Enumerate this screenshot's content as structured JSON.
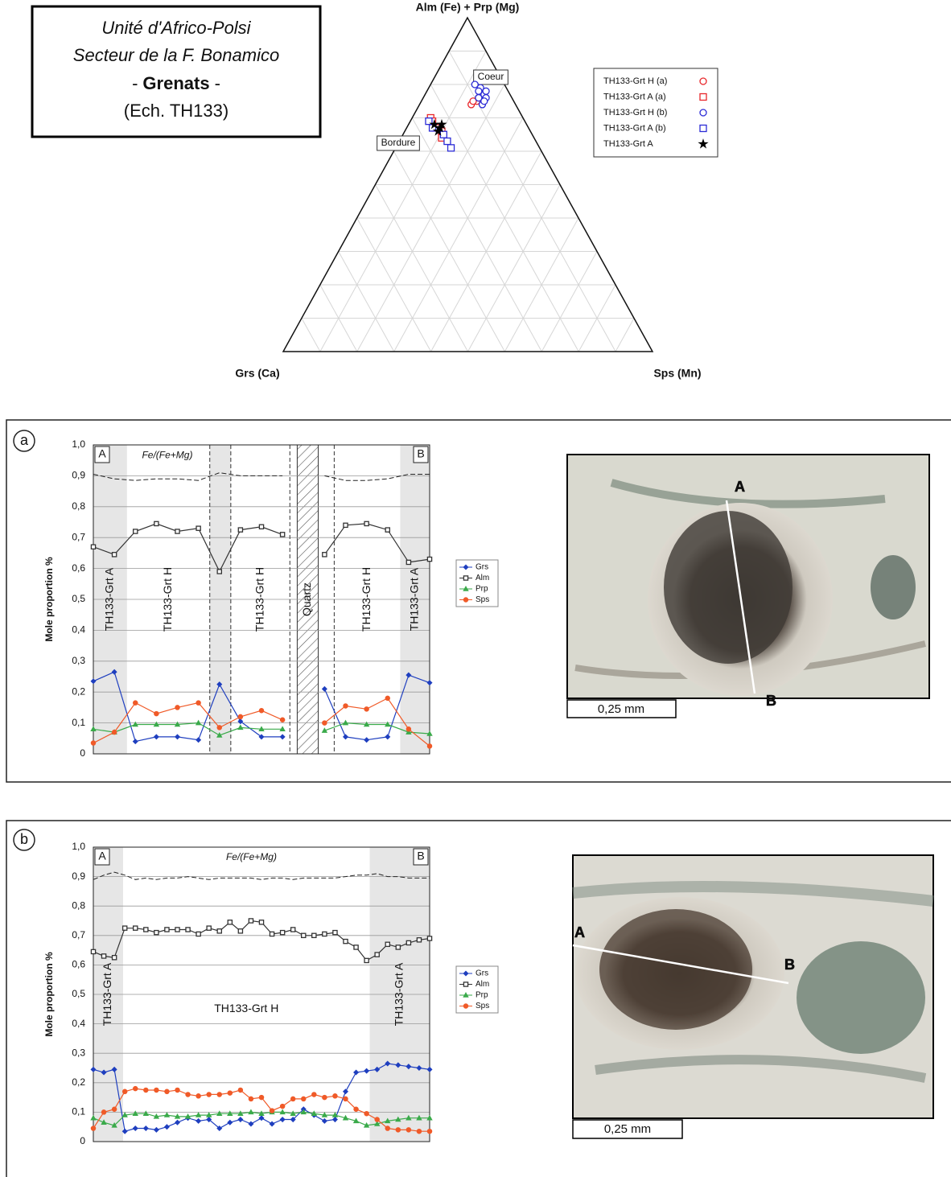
{
  "title_box": {
    "line1": "Unité d'Africo-Polsi",
    "line2": "Secteur de la F. Bonamico",
    "line3_pre": "-",
    "line3_bold": "Grenats",
    "line3_post": "-",
    "line4": "(Ech. TH133)"
  },
  "photos": [
    {
      "label_a": "A",
      "label_b": "B",
      "scale": "0,25 mm"
    },
    {
      "label_a": "A",
      "label_b": "B",
      "scale": "0,25 mm"
    }
  ],
  "chart_data": [
    {
      "type": "ternary",
      "title": "Alm (Fe) + Prp (Mg)",
      "left_label": "Grs (Ca)",
      "right_label": "Sps (Mn)",
      "ticks": [
        0.1,
        0.2,
        0.3,
        0.4,
        0.5,
        0.6,
        0.7,
        0.8,
        0.9
      ],
      "grid": true,
      "legend": "right",
      "annotations": [
        "Coeur",
        "Bordure"
      ],
      "series": [
        {
          "name": "TH133-Grt H (a)",
          "color": "#e8262a",
          "marker": "circle",
          "top": [
            0.74,
            0.75,
            0.76,
            0.77,
            0.75
          ],
          "left": [
            0.12,
            0.1,
            0.09,
            0.08,
            0.11
          ],
          "right": [
            0.14,
            0.15,
            0.15,
            0.15,
            0.14
          ]
        },
        {
          "name": "TH133-Grt A (a)",
          "color": "#e8262a",
          "marker": "square",
          "top": [
            0.7,
            0.69,
            0.67,
            0.66,
            0.64
          ],
          "left": [
            0.25,
            0.25,
            0.25,
            0.24,
            0.25
          ],
          "right": [
            0.05,
            0.06,
            0.08,
            0.1,
            0.11
          ]
        },
        {
          "name": "TH133-Grt H (b)",
          "color": "#2b2bd6",
          "marker": "circle",
          "top": [
            0.8,
            0.79,
            0.77,
            0.76,
            0.76,
            0.74,
            0.78,
            0.75,
            0.78
          ],
          "left": [
            0.08,
            0.07,
            0.07,
            0.07,
            0.09,
            0.09,
            0.08,
            0.08,
            0.06
          ],
          "right": [
            0.12,
            0.14,
            0.16,
            0.17,
            0.15,
            0.17,
            0.14,
            0.17,
            0.16
          ]
        },
        {
          "name": "TH133-Grt A (b)",
          "color": "#2b2bd6",
          "marker": "square",
          "top": [
            0.69,
            0.67,
            0.65,
            0.63,
            0.61
          ],
          "left": [
            0.26,
            0.26,
            0.24,
            0.24,
            0.24
          ],
          "right": [
            0.05,
            0.07,
            0.11,
            0.13,
            0.15
          ]
        },
        {
          "name": "TH133-Grt A",
          "color": "#000000",
          "marker": "star",
          "top": [
            0.68,
            0.68,
            0.66,
            0.67
          ],
          "left": [
            0.25,
            0.23,
            0.25,
            0.24
          ],
          "right": [
            0.07,
            0.09,
            0.09,
            0.09
          ]
        }
      ]
    },
    {
      "type": "line",
      "panel": "a",
      "ylabel": "Mole proportion %",
      "corner_labels": [
        "A",
        "B"
      ],
      "grid": true,
      "legend": "right",
      "x": [
        0,
        1,
        2,
        3,
        4,
        5,
        6,
        7,
        8,
        9,
        10,
        11,
        12,
        13,
        14,
        15,
        16
      ],
      "xlim": [
        0,
        16
      ],
      "ylim": [
        0,
        1
      ],
      "yticks": [
        0,
        {
          "value": 0.1,
          "label": "0,1"
        },
        {
          "value": 0.2,
          "label": "0,2"
        },
        {
          "value": 0.3,
          "label": "0,3"
        },
        {
          "value": 0.4,
          "label": "0,4"
        },
        {
          "value": 0.5,
          "label": "0,5"
        },
        {
          "value": 0.6,
          "label": "0,6"
        },
        {
          "value": 0.7,
          "label": "0,7"
        },
        {
          "value": 0.8,
          "label": "0,8"
        },
        {
          "value": 0.9,
          "label": "0,9"
        },
        {
          "value": 1,
          "label": "1,0"
        }
      ],
      "regions": [
        {
          "from": 0,
          "to": 1.6,
          "fill": "shaded",
          "label": "TH133-Grt A"
        },
        {
          "from": 1.6,
          "to": 5.54,
          "fill": "none",
          "label": "TH133-Grt H"
        },
        {
          "from": 5.54,
          "to": 6.54,
          "fill": "shaded"
        },
        {
          "from": 6.54,
          "to": 9.35,
          "fill": "none",
          "label": "TH133-Grt H"
        },
        {
          "from": 9.7,
          "to": 10.7,
          "fill": "hatched",
          "label": "Quartz"
        },
        {
          "from": 11.46,
          "to": 14.6,
          "fill": "none",
          "label": "TH133-Grt H"
        },
        {
          "from": 14.6,
          "to": 16,
          "fill": "shaded",
          "label": "TH133-Grt A"
        }
      ],
      "dividers": [
        5.54,
        6.54,
        9.35,
        11.46
      ],
      "ratio": {
        "name": "Fe/(Fe+Mg)",
        "values": [
          0.905,
          0.89,
          0.885,
          0.89,
          0.89,
          0.885,
          0.91,
          0.9,
          0.9,
          0.9,
          null,
          0.9,
          0.885,
          0.885,
          0.89,
          0.905,
          0.905
        ]
      },
      "series": [
        {
          "name": "Grs",
          "color": "#1f3fbf",
          "marker": "diamond",
          "values": [
            0.235,
            0.265,
            0.04,
            0.055,
            0.055,
            0.045,
            0.225,
            0.105,
            0.055,
            0.055,
            null,
            0.21,
            0.055,
            0.045,
            0.055,
            0.255,
            0.23
          ]
        },
        {
          "name": "Alm",
          "color": "#333333",
          "marker": "square",
          "values": [
            0.67,
            0.645,
            0.72,
            0.745,
            0.72,
            0.73,
            0.59,
            0.725,
            0.735,
            0.71,
            null,
            0.645,
            0.74,
            0.745,
            0.725,
            0.62,
            0.63
          ]
        },
        {
          "name": "Prp",
          "color": "#3aaa4a",
          "marker": "triangle",
          "values": [
            0.08,
            0.07,
            0.095,
            0.095,
            0.095,
            0.1,
            0.06,
            0.085,
            0.08,
            0.08,
            null,
            0.075,
            0.1,
            0.095,
            0.095,
            0.07,
            0.065
          ]
        },
        {
          "name": "Sps",
          "color": "#f05a28",
          "marker": "circle",
          "values": [
            0.035,
            0.07,
            0.165,
            0.13,
            0.15,
            0.165,
            0.085,
            0.12,
            0.14,
            0.11,
            null,
            0.1,
            0.155,
            0.145,
            0.18,
            0.08,
            0.025
          ]
        }
      ]
    },
    {
      "type": "line",
      "panel": "b",
      "ylabel": "Mole proportion %",
      "corner_labels": [
        "A",
        "B"
      ],
      "grid": true,
      "legend": "right",
      "x": [
        0,
        1,
        2,
        3,
        4,
        5,
        6,
        7,
        8,
        9,
        10,
        11,
        12,
        13,
        14,
        15,
        16,
        17,
        18,
        19,
        20,
        21,
        22,
        23,
        24,
        25,
        26,
        27,
        28,
        29,
        30,
        31,
        32
      ],
      "xlim": [
        0,
        32
      ],
      "ylim": [
        0,
        1
      ],
      "yticks": [
        0,
        {
          "value": 0.1,
          "label": "0,1"
        },
        {
          "value": 0.2,
          "label": "0,2"
        },
        {
          "value": 0.3,
          "label": "0,3"
        },
        {
          "value": 0.4,
          "label": "0,4"
        },
        {
          "value": 0.5,
          "label": "0,5"
        },
        {
          "value": 0.6,
          "label": "0,6"
        },
        {
          "value": 0.7,
          "label": "0,7"
        },
        {
          "value": 0.8,
          "label": "0,8"
        },
        {
          "value": 0.9,
          "label": "0,9"
        },
        {
          "value": 1,
          "label": "1,0"
        }
      ],
      "regions": [
        {
          "from": 0,
          "to": 2.83,
          "fill": "shaded",
          "label": "TH133-Grt A"
        },
        {
          "from": 2.83,
          "to": 26.3,
          "fill": "none",
          "label": "TH133-Grt H",
          "orientation": "horizontal"
        },
        {
          "from": 26.3,
          "to": 32,
          "fill": "shaded",
          "label": "TH133-Grt A"
        }
      ],
      "dividers": [],
      "ratio": {
        "name": "Fe/(Fe+Mg)",
        "values": [
          0.89,
          0.905,
          0.915,
          0.905,
          0.89,
          0.895,
          0.89,
          0.895,
          0.895,
          0.9,
          0.895,
          0.89,
          0.895,
          0.895,
          0.895,
          0.895,
          0.89,
          0.895,
          0.895,
          0.89,
          0.895,
          0.895,
          0.895,
          0.895,
          0.9,
          0.905,
          0.905,
          0.91,
          0.9,
          0.9,
          0.895,
          0.895,
          0.895
        ]
      },
      "series": [
        {
          "name": "Grs",
          "color": "#1f3fbf",
          "marker": "diamond",
          "values": [
            0.245,
            0.235,
            0.245,
            0.035,
            0.045,
            0.045,
            0.04,
            0.05,
            0.065,
            0.08,
            0.07,
            0.075,
            0.045,
            0.065,
            0.075,
            0.06,
            0.08,
            0.06,
            0.075,
            0.075,
            0.11,
            0.09,
            0.07,
            0.075,
            0.17,
            0.235,
            0.24,
            0.245,
            0.265,
            0.26,
            0.255,
            0.25,
            0.245
          ]
        },
        {
          "name": "Alm",
          "color": "#333333",
          "marker": "square",
          "values": [
            0.645,
            0.63,
            0.625,
            0.725,
            0.725,
            0.72,
            0.71,
            0.72,
            0.72,
            0.72,
            0.705,
            0.725,
            0.715,
            0.745,
            0.715,
            0.75,
            0.745,
            0.705,
            0.71,
            0.72,
            0.7,
            0.7,
            0.705,
            0.71,
            0.68,
            0.66,
            0.615,
            0.635,
            0.67,
            0.66,
            0.675,
            0.685,
            0.69
          ]
        },
        {
          "name": "Prp",
          "color": "#3aaa4a",
          "marker": "triangle",
          "values": [
            0.08,
            0.065,
            0.055,
            0.09,
            0.095,
            0.095,
            0.085,
            0.09,
            0.085,
            0.085,
            0.09,
            0.09,
            0.095,
            0.095,
            0.095,
            0.1,
            0.095,
            0.1,
            0.1,
            0.095,
            0.1,
            0.095,
            0.09,
            0.09,
            0.08,
            0.07,
            0.055,
            0.06,
            0.07,
            0.075,
            0.08,
            0.08,
            0.08
          ]
        },
        {
          "name": "Sps",
          "color": "#f05a28",
          "marker": "circle",
          "values": [
            0.045,
            0.1,
            0.11,
            0.17,
            0.18,
            0.175,
            0.175,
            0.17,
            0.175,
            0.16,
            0.155,
            0.16,
            0.16,
            0.165,
            0.175,
            0.145,
            0.15,
            0.105,
            0.12,
            0.145,
            0.145,
            0.16,
            0.15,
            0.155,
            0.145,
            0.11,
            0.095,
            0.075,
            0.045,
            0.04,
            0.04,
            0.035,
            0.035
          ]
        }
      ]
    }
  ]
}
